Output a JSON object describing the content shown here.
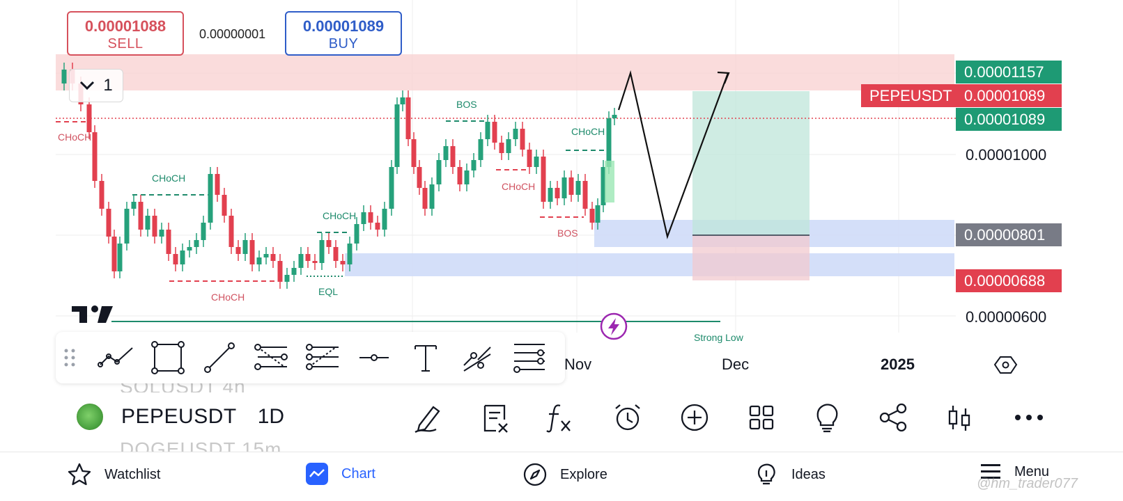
{
  "trade": {
    "sell_price": "0.00001088",
    "sell_label": "SELL",
    "spread": "0.00000001",
    "buy_price": "0.00001089",
    "buy_label": "BUY"
  },
  "collapse_count": "1",
  "price_axis": {
    "ticks": [
      "0.00001000",
      "0.00000600"
    ],
    "tags": {
      "target": "0.00001157",
      "symbol": "PEPEUSDT",
      "last": "0.00001089",
      "last2": "0.00001089",
      "entry": "0.00000801",
      "stop": "0.00000688"
    }
  },
  "time_axis": {
    "ticks": [
      "Nov",
      "Dec",
      "2025"
    ]
  },
  "annotations": {
    "choch_1": "CHoCH",
    "choch_2": "CHoCH",
    "choch_3": "CHoCH",
    "choch_4": "CHoCH",
    "choch_5": "CHoCH",
    "choch_6": "CHoCH",
    "bos_1": "BOS",
    "bos_2": "BOS",
    "eql": "EQL",
    "strong_low": "Strong Low"
  },
  "watchlist_peek": {
    "above": "SOLUSDT    4h",
    "below": "DOGEUSDT   15m"
  },
  "symbol": {
    "name": "PEPEUSDT",
    "timeframe": "1D"
  },
  "bottom_nav": {
    "watchlist": "Watchlist",
    "chart": "Chart",
    "explore": "Explore",
    "ideas": "Ideas",
    "menu": "Menu"
  },
  "watermark": "@hm_trader077",
  "colors": {
    "up": "#26a17b",
    "down": "#e2404f",
    "accent": "#2962ff",
    "sell": "#d6515c",
    "buy": "#2f5dc8"
  }
}
